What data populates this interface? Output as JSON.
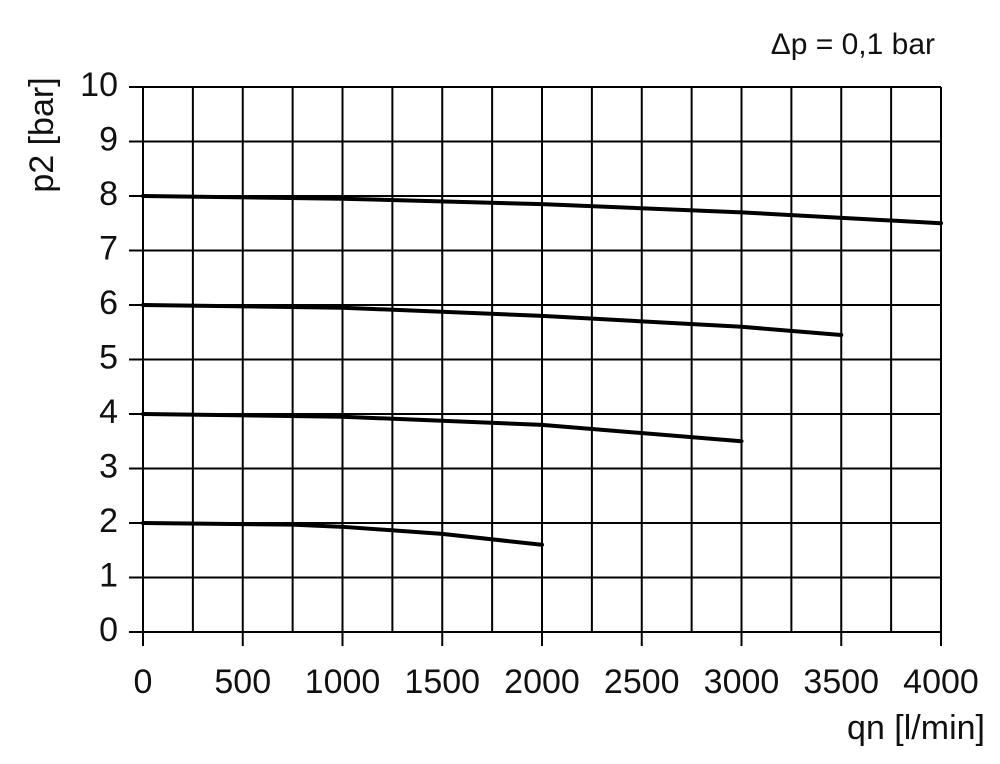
{
  "chart_data": {
    "type": "line",
    "annotation": "Δp = 0,1 bar",
    "x_label": "qn [l/min]",
    "y_label": "p2 [bar]",
    "series": [
      {
        "color": "#000000",
        "x": [
          0,
          1000,
          2000,
          3000,
          4000
        ],
        "values": [
          8,
          7.95,
          7.85,
          7.7,
          7.5
        ]
      },
      {
        "color": "#000000",
        "x": [
          0,
          1000,
          2000,
          3000,
          3500
        ],
        "values": [
          6,
          5.95,
          5.8,
          5.6,
          5.45
        ]
      },
      {
        "color": "#000000",
        "x": [
          0,
          1000,
          2000,
          3000
        ],
        "values": [
          4,
          3.95,
          3.8,
          3.5
        ]
      },
      {
        "color": "#000000",
        "x": [
          0,
          750,
          1000,
          1500,
          2000
        ],
        "values": [
          2,
          1.97,
          1.93,
          1.8,
          1.6
        ]
      }
    ],
    "xlim": [
      0,
      4000
    ],
    "xticks": [
      0,
      500,
      1000,
      1500,
      2000,
      2500,
      3000,
      3500,
      4000
    ],
    "ylim": [
      0,
      10
    ],
    "yticks": [
      0,
      1,
      2,
      3,
      4,
      5,
      6,
      7,
      8,
      9,
      10
    ],
    "grid": true,
    "x_minor_grid": true
  }
}
